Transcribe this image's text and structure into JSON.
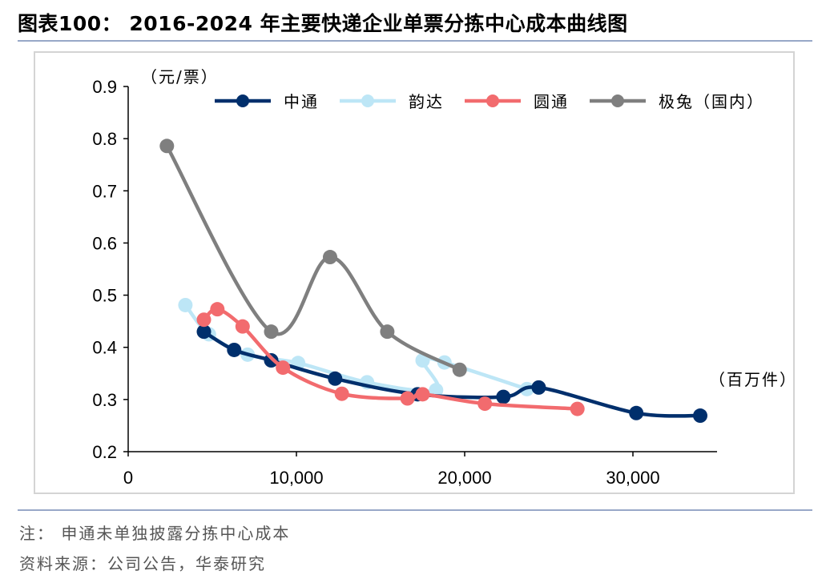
{
  "header": {
    "title": "图表100：  2016-2024 年主要快递企业单票分拣中心成本曲线图"
  },
  "footer": {
    "note": "注：  申通未单独披露分拣中心成本",
    "source": "资料来源：公司公告，华泰研究"
  },
  "chart_data": {
    "type": "line",
    "title": "2016-2024 年主要快递企业单票分拣中心成本曲线图",
    "xlabel": "（百万件）",
    "ylabel": "（元/票）",
    "xlim": [
      0,
      35000
    ],
    "ylim": [
      0.2,
      0.9
    ],
    "x_ticks": [
      0,
      10000,
      20000,
      30000
    ],
    "x_tick_labels": [
      "0",
      "10,000",
      "20,000",
      "30,000"
    ],
    "y_ticks": [
      0.2,
      0.3,
      0.4,
      0.5,
      0.6,
      0.7,
      0.8,
      0.9
    ],
    "y_tick_labels": [
      "0.2",
      "0.3",
      "0.4",
      "0.5",
      "0.6",
      "0.7",
      "0.8",
      "0.9"
    ],
    "legend_position": "top",
    "series": [
      {
        "name": "中通",
        "color": "#002f6c",
        "x": [
          4500,
          6300,
          8500,
          12300,
          17200,
          22300,
          24400,
          30200,
          34000
        ],
        "y": [
          0.43,
          0.395,
          0.375,
          0.34,
          0.31,
          0.305,
          0.323,
          0.274,
          0.269
        ]
      },
      {
        "name": "韵达",
        "color": "#bde6f6",
        "x": [
          3400,
          4800,
          7100,
          10100,
          14200,
          18300,
          17500,
          18800,
          23700
        ],
        "y": [
          0.481,
          0.425,
          0.386,
          0.37,
          0.333,
          0.318,
          0.375,
          0.371,
          0.32
        ]
      },
      {
        "name": "圆通",
        "color": "#f26b6e",
        "x": [
          4500,
          5300,
          6800,
          9200,
          12700,
          16600,
          17500,
          21200,
          26700
        ],
        "y": [
          0.453,
          0.473,
          0.44,
          0.361,
          0.311,
          0.302,
          0.31,
          0.292,
          0.282
        ]
      },
      {
        "name": "极兔（国内）",
        "color": "#7f7f7f",
        "x": [
          2300,
          8500,
          12000,
          15400,
          19700
        ],
        "y": [
          0.786,
          0.43,
          0.573,
          0.43,
          0.357
        ]
      }
    ]
  }
}
